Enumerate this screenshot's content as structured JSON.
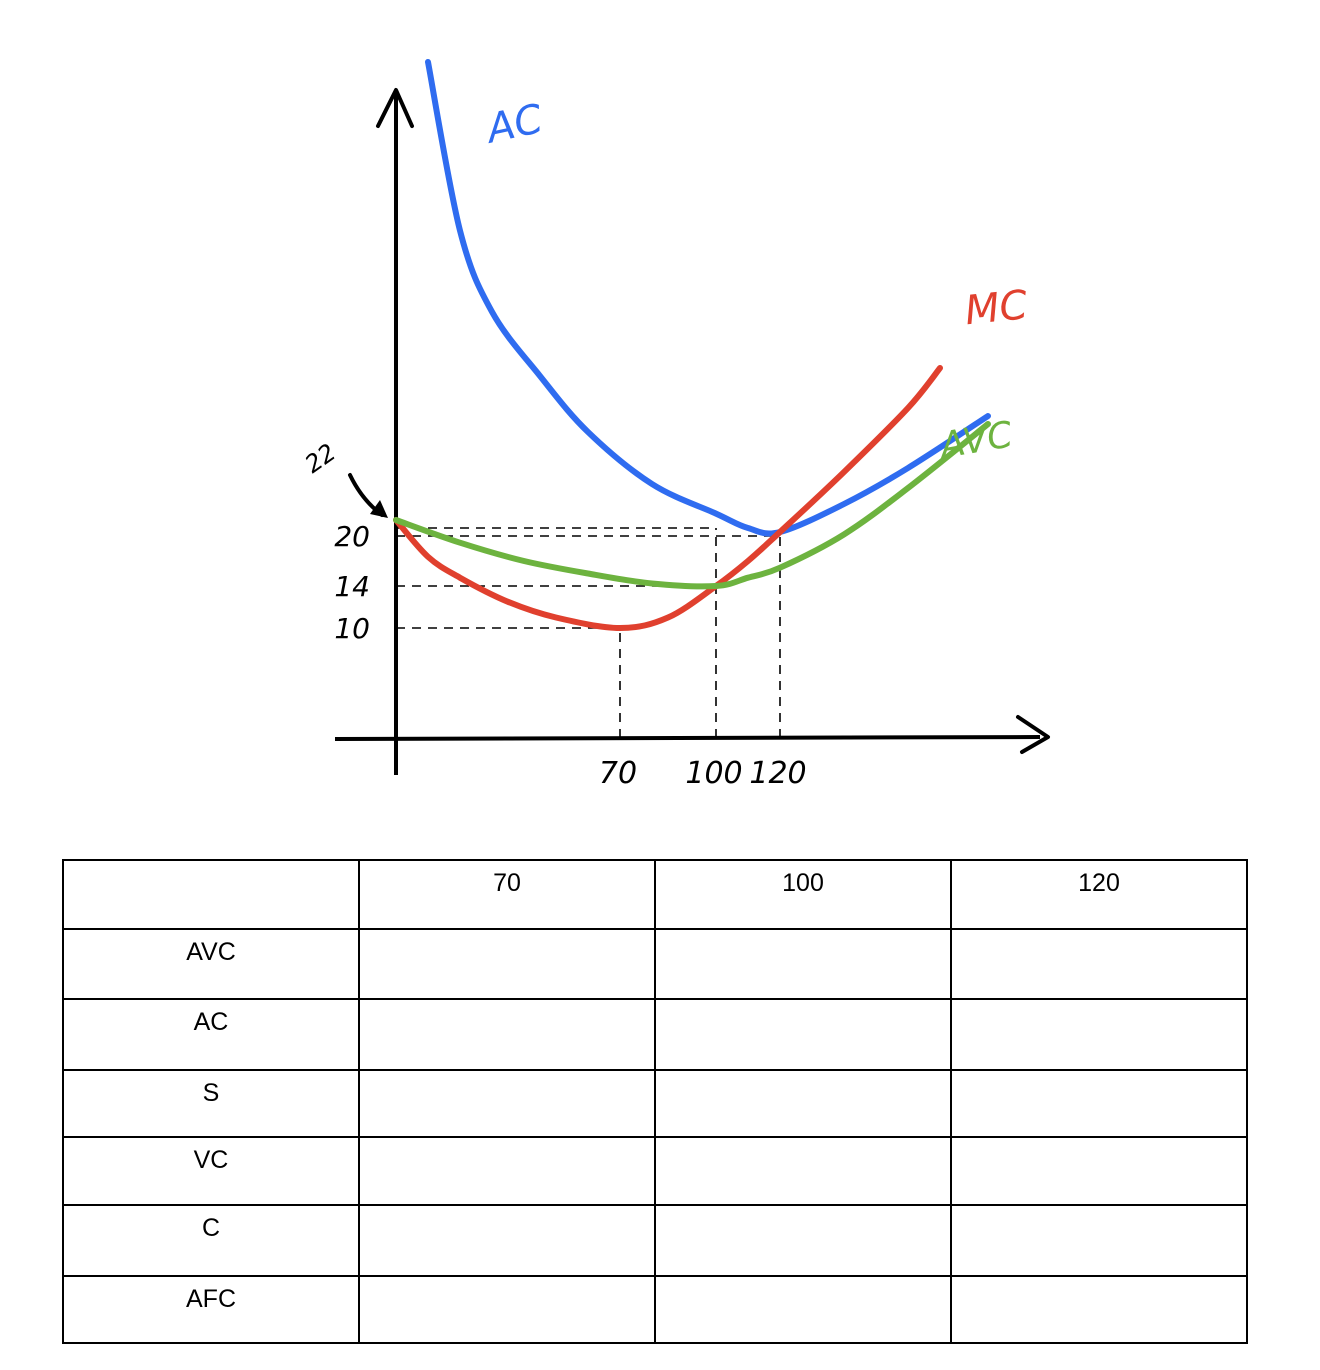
{
  "chart_data": {
    "type": "line",
    "title": "",
    "xlabel": "",
    "ylabel": "",
    "x_ticks": [
      "70",
      "100",
      "120"
    ],
    "y_ticks": [
      "10",
      "14",
      "20"
    ],
    "annotations": [
      {
        "text": "22",
        "x": 0,
        "y": 22
      }
    ],
    "series": [
      {
        "name": "AC",
        "color": "#2f6cf0",
        "x": [
          10,
          20,
          30,
          45,
          60,
          80,
          100,
          110,
          120,
          140,
          160,
          185
        ],
        "y": [
          90,
          63,
          50,
          40,
          33,
          26.5,
          22.8,
          21,
          20.5,
          24,
          28.5,
          35
        ]
      },
      {
        "name": "MC",
        "color": "#e0402e",
        "x": [
          0,
          10,
          20,
          35,
          50,
          70,
          85,
          100,
          110,
          120,
          140,
          160,
          170
        ],
        "y": [
          22,
          17.5,
          15,
          12.5,
          11,
          10,
          11,
          14,
          17,
          20.5,
          28,
          36,
          41
        ]
      },
      {
        "name": "AVC",
        "color": "#6db33f",
        "x": [
          0,
          20,
          40,
          60,
          80,
          100,
          110,
          120,
          140,
          160,
          185
        ],
        "y": [
          22,
          19.2,
          17,
          15.5,
          14.3,
          14,
          15,
          16.2,
          20.2,
          26,
          34
        ]
      }
    ],
    "guides": [
      {
        "from": [
          0,
          10
        ],
        "to": [
          70,
          10
        ]
      },
      {
        "from": [
          0,
          14
        ],
        "to": [
          100,
          14
        ]
      },
      {
        "from": [
          0,
          20
        ],
        "to": [
          120,
          20
        ]
      },
      {
        "from": [
          0,
          21
        ],
        "to": [
          100,
          21
        ]
      },
      {
        "from": [
          70,
          0
        ],
        "to": [
          70,
          10
        ]
      },
      {
        "from": [
          100,
          0
        ],
        "to": [
          100,
          21
        ]
      },
      {
        "from": [
          120,
          0
        ],
        "to": [
          120,
          20
        ]
      }
    ]
  },
  "table": {
    "header": [
      "",
      "70",
      "100",
      "120"
    ],
    "rows": [
      {
        "label": "AVC",
        "cells": [
          "",
          "",
          ""
        ]
      },
      {
        "label": "AC",
        "cells": [
          "",
          "",
          ""
        ]
      },
      {
        "label": "S",
        "cells": [
          "",
          "",
          ""
        ]
      },
      {
        "label": "VC",
        "cells": [
          "",
          "",
          ""
        ]
      },
      {
        "label": "C",
        "cells": [
          "",
          "",
          ""
        ]
      },
      {
        "label": "AFC",
        "cells": [
          "",
          "",
          ""
        ]
      }
    ]
  }
}
